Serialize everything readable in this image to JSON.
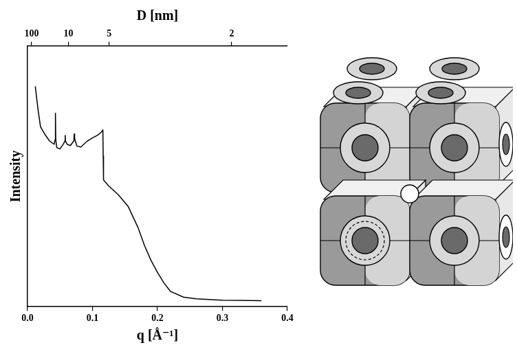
{
  "chart_data": {
    "type": "line",
    "xlabel": "q [Å⁻¹]",
    "x2label": "D [nm]",
    "ylabel": "Intensity",
    "x": [
      0.012,
      0.016,
      0.02,
      0.027,
      0.034,
      0.041,
      0.0425,
      0.043,
      0.0435,
      0.045,
      0.05,
      0.055,
      0.0575,
      0.058,
      0.0585,
      0.061,
      0.066,
      0.071,
      0.0715,
      0.072,
      0.0725,
      0.076,
      0.082,
      0.092,
      0.099,
      0.108,
      0.113,
      0.1155,
      0.116,
      0.1165,
      0.117,
      0.125,
      0.14,
      0.155,
      0.17,
      0.18,
      0.19,
      0.2,
      0.21,
      0.22,
      0.24,
      0.26,
      0.3,
      0.33,
      0.36
    ],
    "values": [
      84.5,
      76,
      69,
      66,
      63.5,
      62.3,
      64,
      74.4,
      64,
      61,
      60.5,
      62.3,
      63.5,
      65.8,
      63.5,
      62.3,
      61.8,
      63.5,
      64.8,
      66.4,
      64.5,
      61.6,
      61.2,
      63.5,
      64.6,
      65.8,
      66.8,
      67.5,
      68,
      58,
      48.6,
      46.3,
      42.9,
      38.4,
      30.4,
      23.5,
      17.8,
      13.2,
      9.1,
      5.9,
      3.7,
      3,
      2.5,
      2.4,
      2.3
    ],
    "color": "#000000",
    "xlim": [
      0,
      0.4
    ],
    "xticks": [
      {
        "value": 0,
        "label": "0.0"
      },
      0.1,
      0.2,
      0.3,
      0.4
    ],
    "x2ticks": [
      100,
      10,
      5,
      2
    ],
    "ylim": [
      0,
      100
    ],
    "tick_labels": "x",
    "grid": false,
    "marker": "none",
    "line_style": "solid"
  }
}
